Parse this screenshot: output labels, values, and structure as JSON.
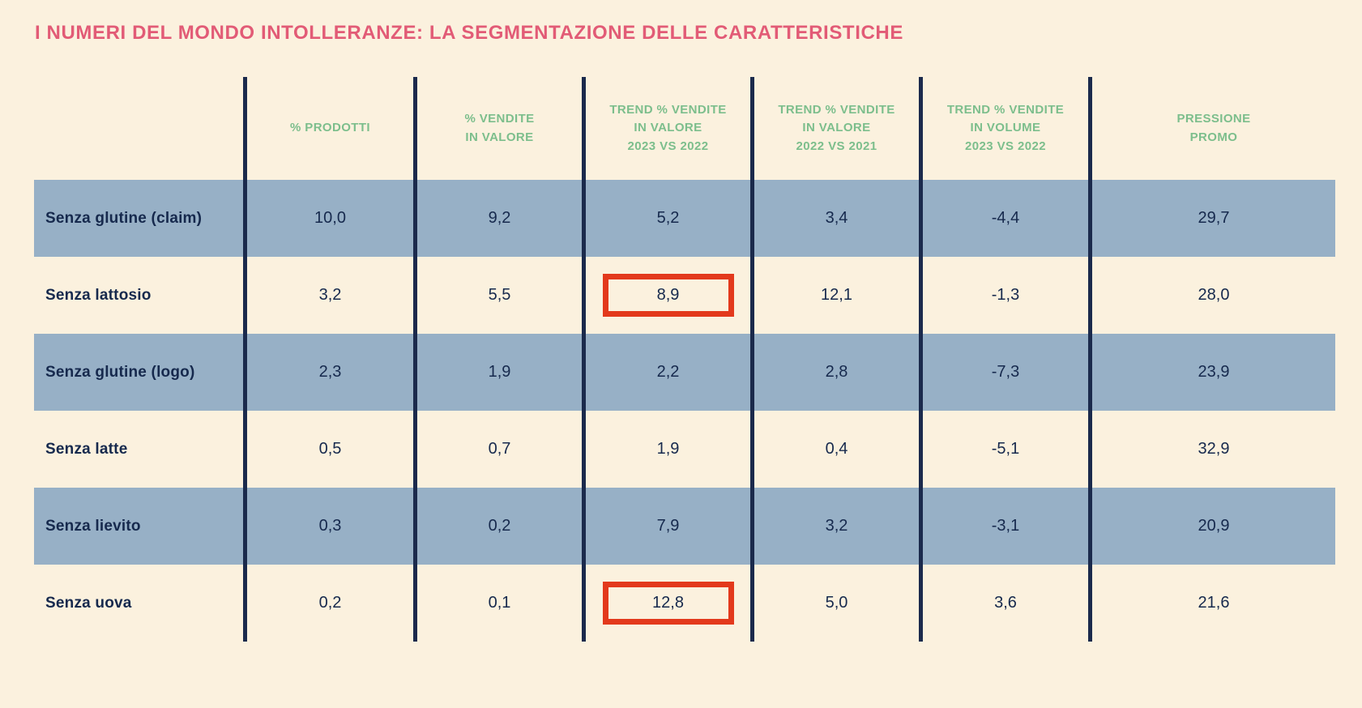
{
  "page": {
    "title": "I NUMERI DEL MONDO INTOLLERANZE: LA SEGMENTAZIONE DELLE CARATTERISTICHE"
  },
  "colors": {
    "background": "#FBF1DE",
    "title_pink": "#E25B76",
    "header_green": "#7CBE8C",
    "row_blue": "#97B0C6",
    "text_navy": "#16294D",
    "grid_line_navy": "#1B2A4C",
    "highlight_red": "#E3391C"
  },
  "table": {
    "columns": [
      "% PRODOTTI",
      "% VENDITE\nIN VALORE",
      "TREND % VENDITE\nIN VALORE\n2023 VS 2022",
      "TREND % VENDITE\nIN VALORE\n2022 VS 2021",
      "TREND % VENDITE\nIN VOLUME\n2023 VS 2022",
      "PRESSIONE\nPROMO"
    ],
    "rows": [
      {
        "label": "Senza glutine (claim)",
        "values": [
          "10,0",
          "9,2",
          "5,2",
          "3,4",
          "-4,4",
          "29,7"
        ]
      },
      {
        "label": "Senza lattosio",
        "values": [
          "3,2",
          "5,5",
          "8,9",
          "12,1",
          "-1,3",
          "28,0"
        ]
      },
      {
        "label": "Senza glutine (logo)",
        "values": [
          "2,3",
          "1,9",
          "2,2",
          "2,8",
          "-7,3",
          "23,9"
        ]
      },
      {
        "label": "Senza latte",
        "values": [
          "0,5",
          "0,7",
          "1,9",
          "0,4",
          "-5,1",
          "32,9"
        ]
      },
      {
        "label": "Senza lievito",
        "values": [
          "0,3",
          "0,2",
          "7,9",
          "3,2",
          "-3,1",
          "20,9"
        ]
      },
      {
        "label": "Senza uova",
        "values": [
          "0,2",
          "0,1",
          "12,8",
          "5,0",
          "3,6",
          "21,6"
        ]
      }
    ],
    "highlights": [
      {
        "row": 1,
        "col": 2
      },
      {
        "row": 5,
        "col": 2
      }
    ]
  },
  "chart_data": {
    "type": "table",
    "title": "I NUMERI DEL MONDO INTOLLERANZE: LA SEGMENTAZIONE DELLE CARATTERISTICHE",
    "columns": [
      "% PRODOTTI",
      "% VENDITE IN VALORE",
      "TREND % VENDITE IN VALORE 2023 VS 2022",
      "TREND % VENDITE IN VALORE 2022 VS 2021",
      "TREND % VENDITE IN VOLUME 2023 VS 2022",
      "PRESSIONE PROMO"
    ],
    "rows": [
      {
        "label": "Senza glutine (claim)",
        "values": [
          10.0,
          9.2,
          5.2,
          3.4,
          -4.4,
          29.7
        ]
      },
      {
        "label": "Senza lattosio",
        "values": [
          3.2,
          5.5,
          8.9,
          12.1,
          -1.3,
          28.0
        ]
      },
      {
        "label": "Senza glutine (logo)",
        "values": [
          2.3,
          1.9,
          2.2,
          2.8,
          -7.3,
          23.9
        ]
      },
      {
        "label": "Senza latte",
        "values": [
          0.5,
          0.7,
          1.9,
          0.4,
          -5.1,
          32.9
        ]
      },
      {
        "label": "Senza lievito",
        "values": [
          0.3,
          0.2,
          7.9,
          3.2,
          -3.1,
          20.9
        ]
      },
      {
        "label": "Senza uova",
        "values": [
          0.2,
          0.1,
          12.8,
          5.0,
          3.6,
          21.6
        ]
      }
    ],
    "highlighted_cells": [
      {
        "row": "Senza lattosio",
        "column": "TREND % VENDITE IN VALORE 2023 VS 2022",
        "value": 8.9
      },
      {
        "row": "Senza uova",
        "column": "TREND % VENDITE IN VALORE 2023 VS 2022",
        "value": 12.8
      }
    ]
  }
}
